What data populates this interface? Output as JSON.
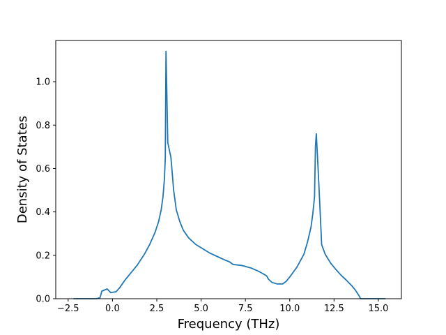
{
  "chart_data": {
    "type": "line",
    "title": "",
    "xlabel": "Frequency (THz)",
    "ylabel": "Density of States",
    "xlim": [
      -3.2,
      16.3
    ],
    "ylim": [
      0.0,
      1.19
    ],
    "xticks": [
      -2.5,
      0.0,
      2.5,
      5.0,
      7.5,
      10.0,
      12.5,
      15.0
    ],
    "xtick_labels": [
      "−2.5",
      "0.0",
      "2.5",
      "5.0",
      "7.5",
      "10.0",
      "12.5",
      "15.0"
    ],
    "yticks": [
      0.0,
      0.2,
      0.4,
      0.6,
      0.8,
      1.0
    ],
    "ytick_labels": [
      "0.0",
      "0.2",
      "0.4",
      "0.6",
      "0.8",
      "1.0"
    ],
    "grid": false,
    "colors": {
      "line": "#1f77b4"
    },
    "series": [
      {
        "x": [
          -2.2,
          -0.9,
          -0.7,
          -0.6,
          -0.3,
          -0.1,
          0.2,
          0.4,
          0.7,
          1.0,
          1.4,
          1.8,
          2.1,
          2.4,
          2.6,
          2.75,
          2.85,
          2.93,
          2.98,
          3.02,
          3.06,
          3.12,
          3.3,
          3.45,
          3.6,
          3.8,
          4.0,
          4.3,
          4.7,
          5.1,
          5.5,
          5.9,
          6.3,
          6.6,
          6.8,
          7.3,
          7.8,
          8.2,
          8.5,
          8.7,
          8.8,
          9.0,
          9.3,
          9.6,
          9.8,
          10.0,
          10.4,
          10.8,
          11.0,
          11.2,
          11.3,
          11.4,
          11.45,
          11.5,
          11.6,
          11.7,
          11.8,
          12.0,
          12.3,
          12.6,
          12.9,
          13.2,
          13.5,
          13.7,
          13.9,
          14.0,
          14.3,
          15.4
        ],
        "y": [
          0.0,
          0.0,
          0.005,
          0.035,
          0.045,
          0.028,
          0.032,
          0.05,
          0.085,
          0.115,
          0.155,
          0.205,
          0.25,
          0.305,
          0.355,
          0.41,
          0.47,
          0.55,
          0.65,
          1.14,
          0.98,
          0.72,
          0.65,
          0.5,
          0.41,
          0.355,
          0.315,
          0.28,
          0.25,
          0.23,
          0.21,
          0.195,
          0.18,
          0.17,
          0.158,
          0.153,
          0.142,
          0.128,
          0.115,
          0.105,
          0.09,
          0.075,
          0.068,
          0.068,
          0.08,
          0.1,
          0.145,
          0.205,
          0.26,
          0.33,
          0.39,
          0.47,
          0.7,
          0.76,
          0.6,
          0.43,
          0.25,
          0.205,
          0.165,
          0.135,
          0.108,
          0.085,
          0.06,
          0.04,
          0.015,
          0.0,
          0.0,
          0.0
        ]
      }
    ]
  }
}
